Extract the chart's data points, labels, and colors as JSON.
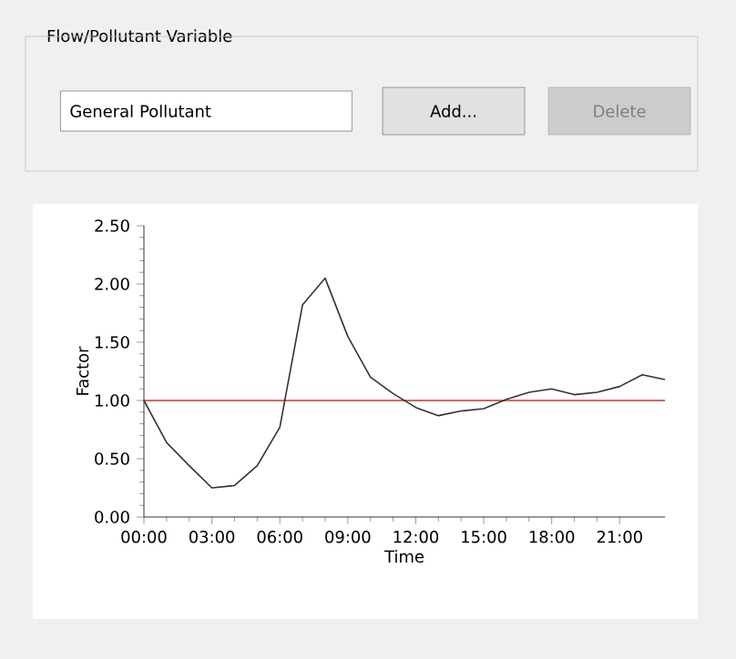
{
  "chart_data": {
    "type": "line",
    "xlabel": "Time",
    "ylabel": "Factor",
    "annotations": [
      "Flow/Pollutant Variable",
      "General Pollutant",
      "Add...",
      "Delete"
    ],
    "x": [
      0,
      1,
      2,
      3,
      4,
      5,
      6,
      7,
      8,
      9,
      10,
      11,
      12,
      13,
      14,
      15,
      16,
      17,
      18,
      19,
      20,
      21,
      22,
      23
    ],
    "series": [
      {
        "color": "#333333",
        "values": [
          1.0,
          0.64,
          0.44,
          0.25,
          0.27,
          0.44,
          0.77,
          1.82,
          2.05,
          1.55,
          1.2,
          1.06,
          0.94,
          0.87,
          0.91,
          0.93,
          1.01,
          1.07,
          1.1,
          1.05,
          1.07,
          1.12,
          1.22,
          1.18
        ]
      }
    ],
    "xlim": [
      0,
      23
    ],
    "xticks": [
      {
        "value": 0,
        "label": "00:00"
      },
      {
        "value": 3,
        "label": "03:00"
      },
      {
        "value": 6,
        "label": "06:00"
      },
      {
        "value": 9,
        "label": "09:00"
      },
      {
        "value": 12,
        "label": "12:00"
      },
      {
        "value": 15,
        "label": "15:00"
      },
      {
        "value": 18,
        "label": "18:00"
      },
      {
        "value": 21,
        "label": "21:00"
      }
    ],
    "ylim": [
      0,
      2.5
    ],
    "yticks": [
      {
        "value": 0,
        "label": "0.00"
      },
      {
        "value": 0.5,
        "label": "0.50"
      },
      {
        "value": 1,
        "label": "1.00"
      },
      {
        "value": 1.5,
        "label": "1.50"
      },
      {
        "value": 2,
        "label": "2.00"
      },
      {
        "value": 2.5,
        "label": "2.50"
      }
    ],
    "ref_lines": [
      {
        "axis": "y",
        "value": 1,
        "color": "#c0392b"
      }
    ],
    "marker": "none",
    "line_style": "solid"
  }
}
